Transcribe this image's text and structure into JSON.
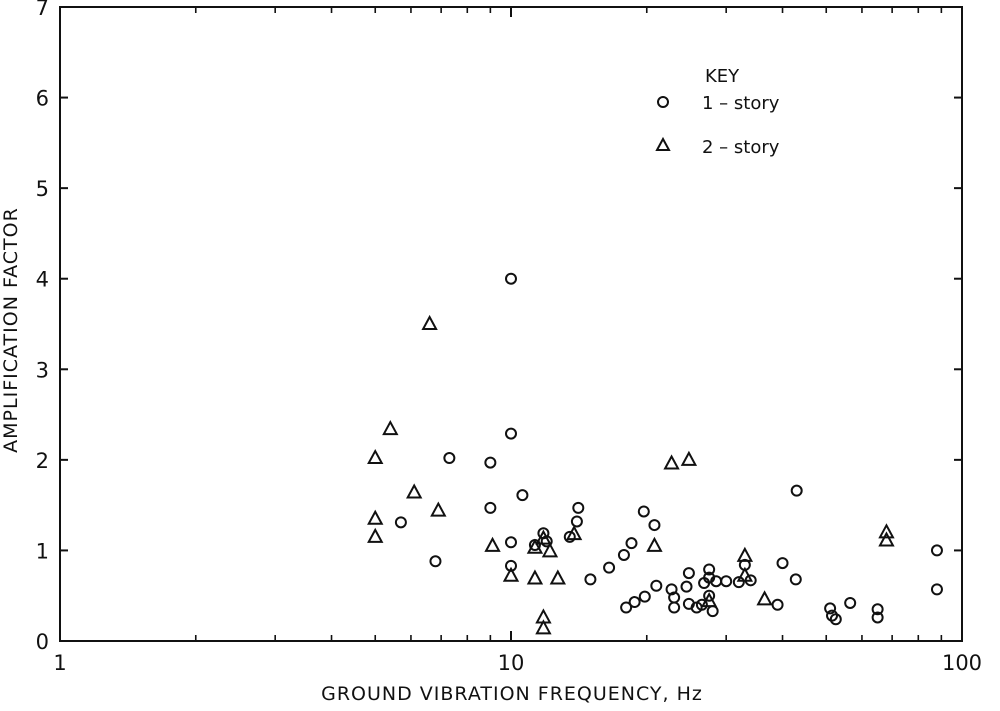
{
  "chart_data": {
    "type": "scatter",
    "xlabel": "GROUND VIBRATION FREQUENCY, Hz",
    "ylabel": "AMPLIFICATION FACTOR",
    "xscale": "log",
    "xlim": [
      1,
      100
    ],
    "ylim": [
      0,
      7
    ],
    "x_ticks": [
      1,
      10,
      100
    ],
    "x_tick_labels": [
      "1",
      "10",
      "100"
    ],
    "y_ticks": [
      0,
      1,
      2,
      3,
      4,
      5,
      6,
      7
    ],
    "y_tick_labels": [
      "0",
      "1",
      "2",
      "3",
      "4",
      "5",
      "6",
      "7"
    ],
    "grid": false,
    "legend": {
      "title": "KEY",
      "placement": "top-right",
      "entries": [
        {
          "label": "1 – story",
          "marker": "circle"
        },
        {
          "label": "2 – story",
          "marker": "triangle"
        }
      ]
    },
    "series": [
      {
        "name": "1 – story",
        "marker": "circle",
        "points": [
          [
            5.7,
            1.31
          ],
          [
            6.8,
            0.88
          ],
          [
            7.3,
            2.02
          ],
          [
            9.0,
            1.97
          ],
          [
            9.0,
            1.47
          ],
          [
            10.0,
            4.0
          ],
          [
            10.0,
            2.29
          ],
          [
            10.0,
            1.09
          ],
          [
            10.0,
            0.83
          ],
          [
            10.6,
            1.61
          ],
          [
            11.3,
            1.06
          ],
          [
            11.8,
            1.19
          ],
          [
            12.0,
            1.1
          ],
          [
            13.5,
            1.15
          ],
          [
            14.1,
            1.47
          ],
          [
            14.0,
            1.32
          ],
          [
            15.0,
            0.68
          ],
          [
            16.5,
            0.81
          ],
          [
            17.8,
            0.95
          ],
          [
            18.0,
            0.37
          ],
          [
            18.5,
            1.08
          ],
          [
            18.8,
            0.43
          ],
          [
            19.7,
            1.43
          ],
          [
            19.8,
            0.49
          ],
          [
            20.8,
            1.28
          ],
          [
            21.0,
            0.61
          ],
          [
            22.7,
            0.57
          ],
          [
            23.0,
            0.48
          ],
          [
            23.0,
            0.37
          ],
          [
            24.5,
            0.6
          ],
          [
            24.8,
            0.41
          ],
          [
            24.8,
            0.75
          ],
          [
            25.8,
            0.37
          ],
          [
            26.5,
            0.4
          ],
          [
            26.8,
            0.64
          ],
          [
            27.5,
            0.79
          ],
          [
            27.5,
            0.7
          ],
          [
            28.0,
            0.33
          ],
          [
            27.5,
            0.5
          ],
          [
            28.5,
            0.66
          ],
          [
            30.0,
            0.66
          ],
          [
            32.0,
            0.65
          ],
          [
            33.0,
            0.84
          ],
          [
            34.0,
            0.67
          ],
          [
            39.0,
            0.4
          ],
          [
            40.0,
            0.86
          ],
          [
            42.8,
            0.68
          ],
          [
            43.0,
            1.66
          ],
          [
            51.0,
            0.36
          ],
          [
            51.5,
            0.28
          ],
          [
            52.5,
            0.24
          ],
          [
            56.5,
            0.42
          ],
          [
            65.0,
            0.35
          ],
          [
            65.0,
            0.26
          ],
          [
            88.0,
            1.0
          ],
          [
            88.0,
            0.57
          ]
        ]
      },
      {
        "name": "2 – story",
        "marker": "triangle",
        "points": [
          [
            5.0,
            2.02
          ],
          [
            5.0,
            1.35
          ],
          [
            5.0,
            1.15
          ],
          [
            5.4,
            2.34
          ],
          [
            6.1,
            1.64
          ],
          [
            6.6,
            3.5
          ],
          [
            6.9,
            1.44
          ],
          [
            9.1,
            1.05
          ],
          [
            10.0,
            0.72
          ],
          [
            11.3,
            1.03
          ],
          [
            11.3,
            0.69
          ],
          [
            11.8,
            1.13
          ],
          [
            11.8,
            0.26
          ],
          [
            11.8,
            0.14
          ],
          [
            12.2,
            0.99
          ],
          [
            12.7,
            0.69
          ],
          [
            13.8,
            1.18
          ],
          [
            20.8,
            1.05
          ],
          [
            22.7,
            1.96
          ],
          [
            24.8,
            2.0
          ],
          [
            27.5,
            0.44
          ],
          [
            33.0,
            0.94
          ],
          [
            33.0,
            0.72
          ],
          [
            36.5,
            0.46
          ],
          [
            68.0,
            1.2
          ],
          [
            68.0,
            1.11
          ]
        ]
      }
    ]
  }
}
